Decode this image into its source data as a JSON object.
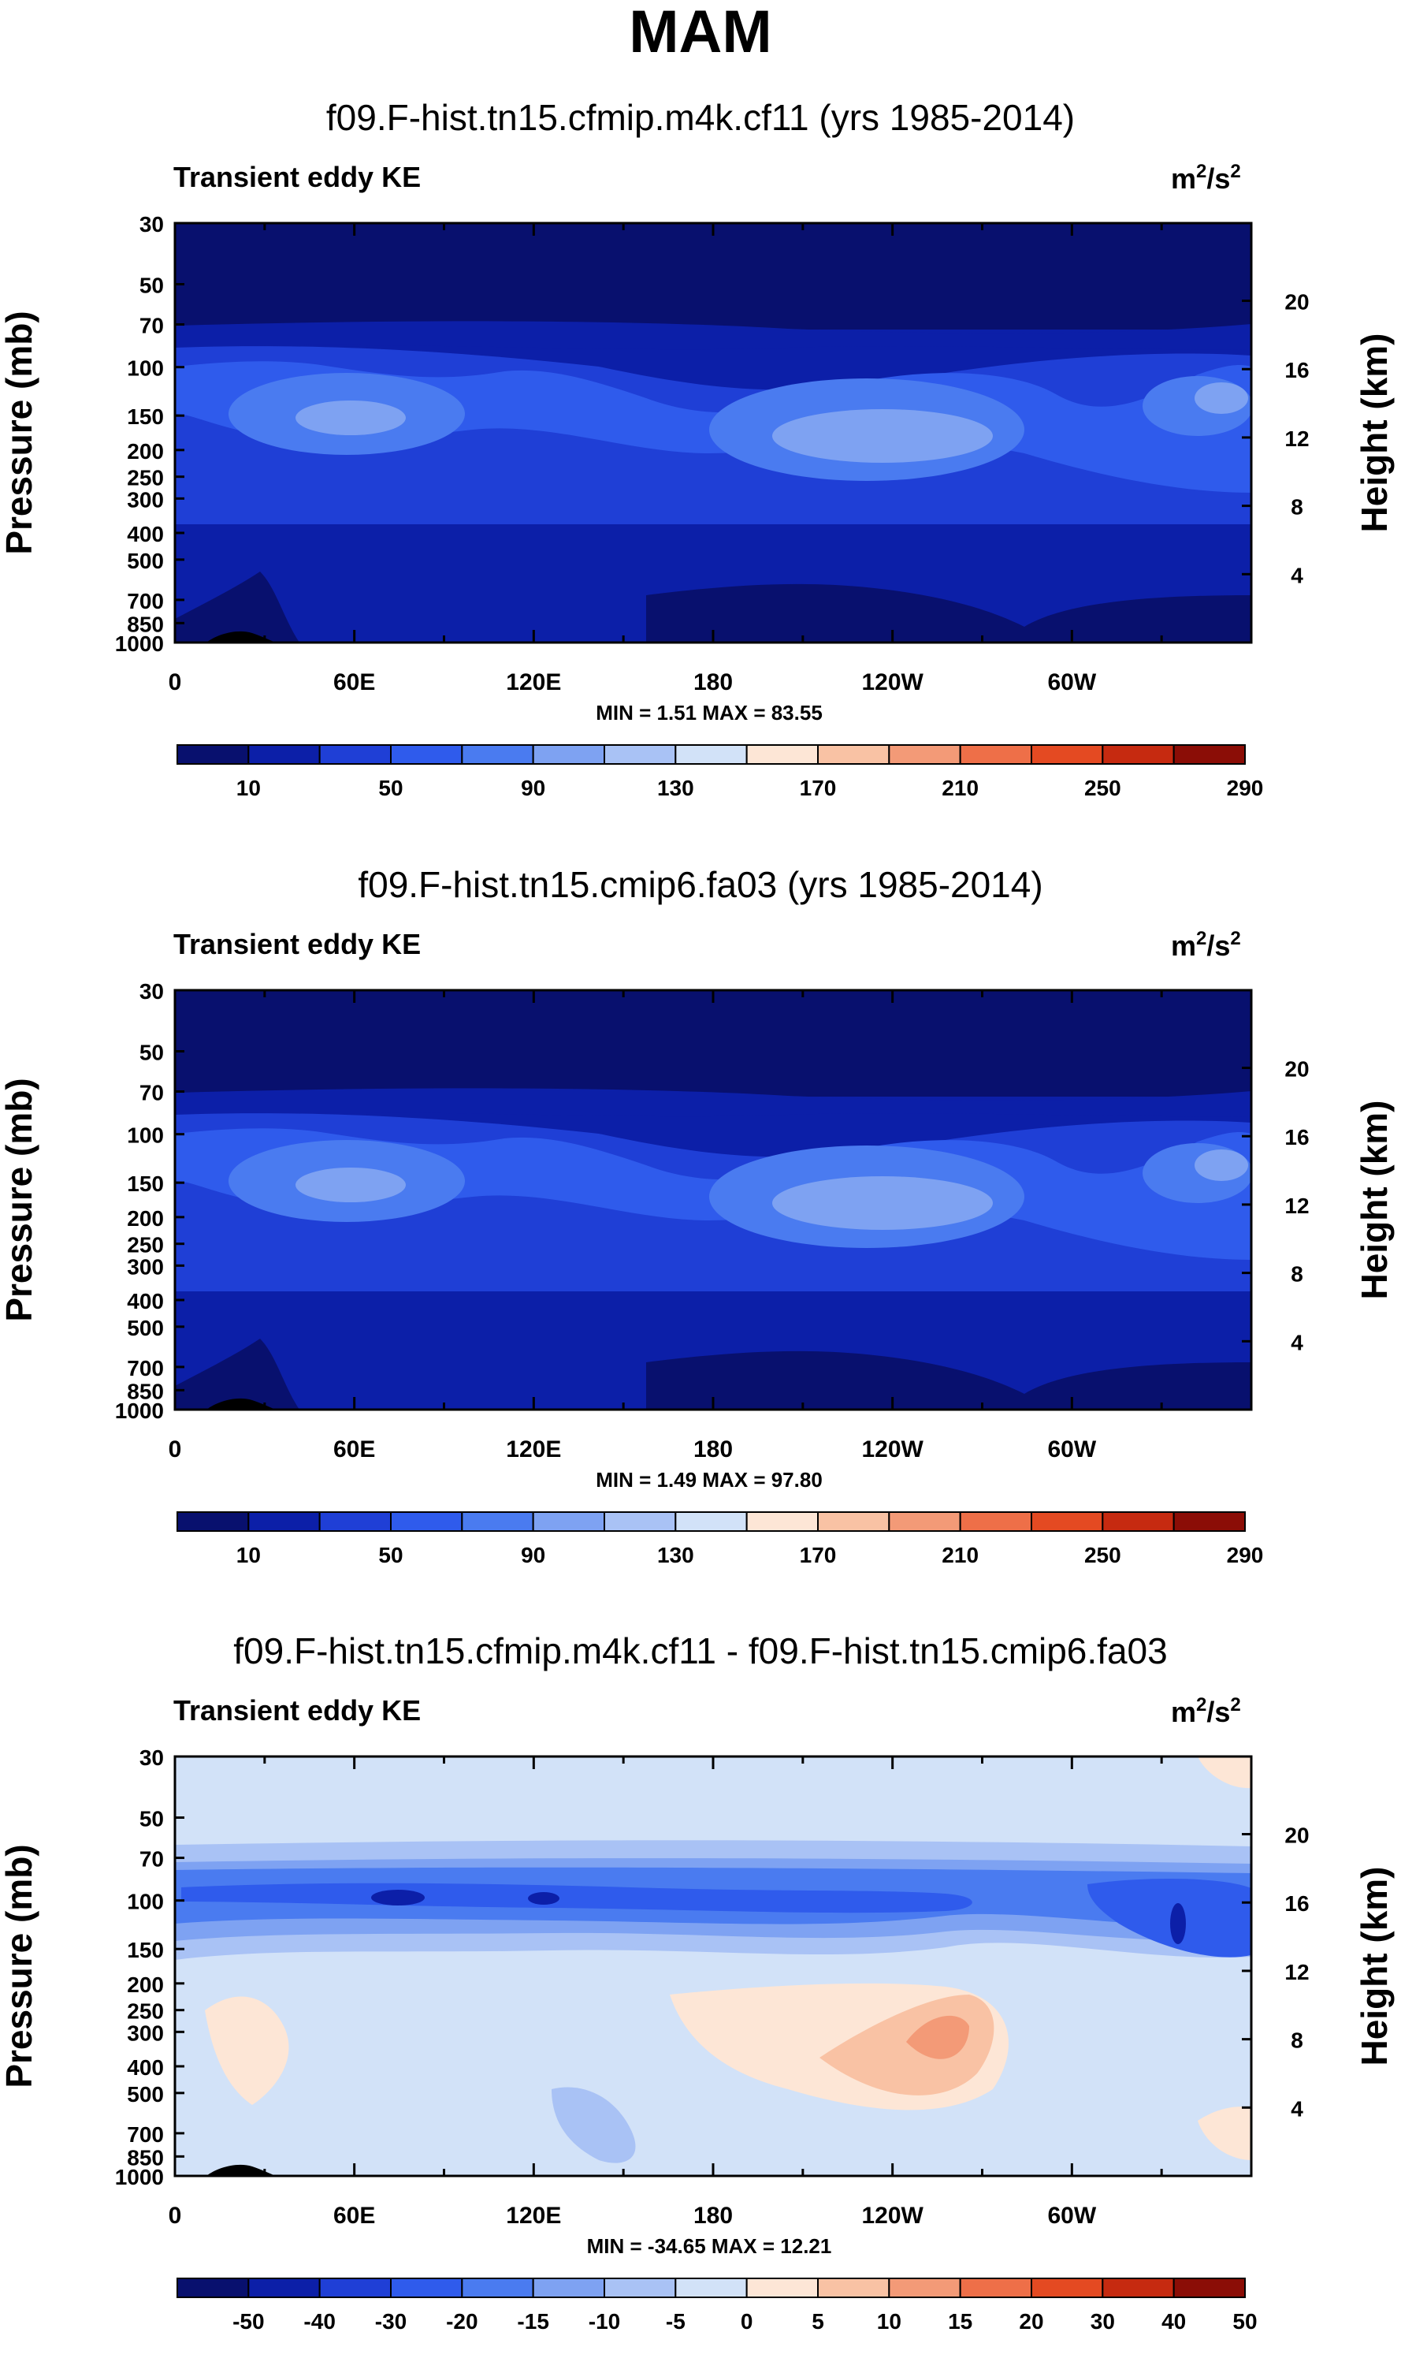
{
  "title": "MAM",
  "chart_data": [
    {
      "type": "heatmap",
      "title": "f09.F-hist.tn15.cfmip.m4k.cf11 (yrs 1985-2014)",
      "variable": "Transient eddy KE",
      "units_base": "m",
      "units_exp1": "2",
      "units_mid": "/s",
      "units_exp2": "2",
      "ylabel": "Pressure (mb)",
      "ylabel_right": "Height (km)",
      "xlabel": "",
      "x_ticks": [
        "0",
        "60E",
        "120E",
        "180",
        "120W",
        "60W"
      ],
      "y_ticks": [
        "30",
        "50",
        "70",
        "100",
        "150",
        "200",
        "250",
        "300",
        "400",
        "500",
        "700",
        "850",
        "1000"
      ],
      "y_ticks_right": [
        "20",
        "16",
        "12",
        "8",
        "4"
      ],
      "stats": "MIN =   1.51  MAX =  83.55",
      "colorbar_labels": [
        "10",
        "50",
        "90",
        "130",
        "170",
        "210",
        "250",
        "290"
      ],
      "min": 1.51,
      "max": 83.55
    },
    {
      "type": "heatmap",
      "title": "f09.F-hist.tn15.cmip6.fa03 (yrs 1985-2014)",
      "variable": "Transient eddy KE",
      "units_base": "m",
      "units_exp1": "2",
      "units_mid": "/s",
      "units_exp2": "2",
      "ylabel": "Pressure (mb)",
      "ylabel_right": "Height (km)",
      "xlabel": "",
      "x_ticks": [
        "0",
        "60E",
        "120E",
        "180",
        "120W",
        "60W"
      ],
      "y_ticks": [
        "30",
        "50",
        "70",
        "100",
        "150",
        "200",
        "250",
        "300",
        "400",
        "500",
        "700",
        "850",
        "1000"
      ],
      "y_ticks_right": [
        "20",
        "16",
        "12",
        "8",
        "4"
      ],
      "stats": "MIN =   1.49  MAX =  97.80",
      "colorbar_labels": [
        "10",
        "50",
        "90",
        "130",
        "170",
        "210",
        "250",
        "290"
      ],
      "min": 1.49,
      "max": 97.8
    },
    {
      "type": "heatmap",
      "title": "f09.F-hist.tn15.cfmip.m4k.cf11 - f09.F-hist.tn15.cmip6.fa03",
      "variable": "Transient eddy KE",
      "units_base": "m",
      "units_exp1": "2",
      "units_mid": "/s",
      "units_exp2": "2",
      "ylabel": "Pressure (mb)",
      "ylabel_right": "Height (km)",
      "xlabel": "",
      "x_ticks": [
        "0",
        "60E",
        "120E",
        "180",
        "120W",
        "60W"
      ],
      "y_ticks": [
        "30",
        "50",
        "70",
        "100",
        "150",
        "200",
        "250",
        "300",
        "400",
        "500",
        "700",
        "850",
        "1000"
      ],
      "y_ticks_right": [
        "20",
        "16",
        "12",
        "8",
        "4"
      ],
      "stats": "MIN = -34.65  MAX =  12.21",
      "colorbar_labels": [
        "-50",
        "-40",
        "-30",
        "-20",
        "-15",
        "-10",
        "-5",
        "0",
        "5",
        "10",
        "15",
        "20",
        "30",
        "40",
        "50"
      ],
      "min": -34.65,
      "max": 12.21
    }
  ],
  "colors": {
    "abs_palette": [
      "#08106e",
      "#0c1fa8",
      "#1f3fd6",
      "#2f5bec",
      "#4a7bf0",
      "#7ea2f2",
      "#a9c2f5",
      "#d2e2f8",
      "#fde6d6",
      "#f9c2a4",
      "#f39a77",
      "#ee6f48",
      "#e44a22",
      "#c62a10",
      "#8b0d06"
    ],
    "diff_palette": [
      "#08106e",
      "#0c1fa8",
      "#1f3fd6",
      "#2f5bec",
      "#4a7bf0",
      "#7ea2f2",
      "#a9c2f5",
      "#d2e2f8",
      "#fde6d6",
      "#f9c2a4",
      "#f39a77",
      "#ee6f48",
      "#e44a22",
      "#c62a10",
      "#8b0d06"
    ],
    "topography": "#000000"
  }
}
